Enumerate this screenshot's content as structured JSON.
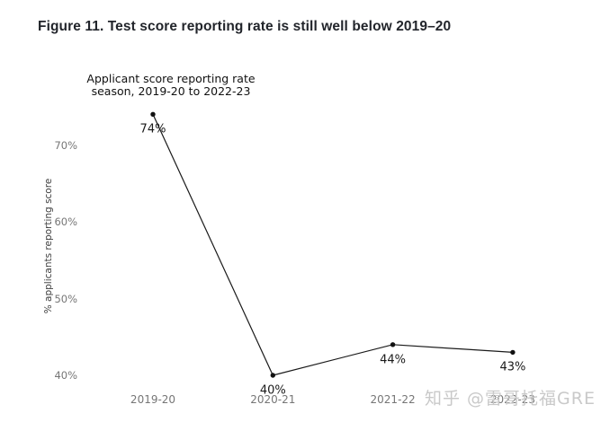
{
  "figure_title": "Figure 11. Test score reporting rate is still well below 2019–20",
  "watermark": "知乎 @雷哥托福GRE",
  "colors": {
    "figure_title": "#22252b",
    "chart_text": "#1a1a1a",
    "tick_label": "#767676",
    "axis_title": "#3d3d3d",
    "line": "#1a1a1a",
    "marker": "#111111",
    "watermark": "#c9c9c9",
    "background": "#ffffff"
  },
  "chart_data": {
    "type": "line",
    "title": "Applicant score reporting rate season, 2019-20 to 2022-23",
    "title_line1": "Applicant score reporting rate",
    "title_line2": "season, 2019-20 to 2022-23",
    "categories": [
      "2019-20",
      "2020-21",
      "2021-22",
      "2022-23"
    ],
    "values": [
      74,
      40,
      44,
      43
    ],
    "data_labels": [
      "74%",
      "40%",
      "44%",
      "43%"
    ],
    "xlabel": "",
    "ylabel": "% applicants reporting score",
    "yticks": [
      40,
      50,
      60,
      70
    ],
    "ytick_suffix": "%",
    "ylim": [
      38,
      76
    ],
    "grid": false,
    "legend": false,
    "axis_spines": false,
    "marker": "point"
  }
}
